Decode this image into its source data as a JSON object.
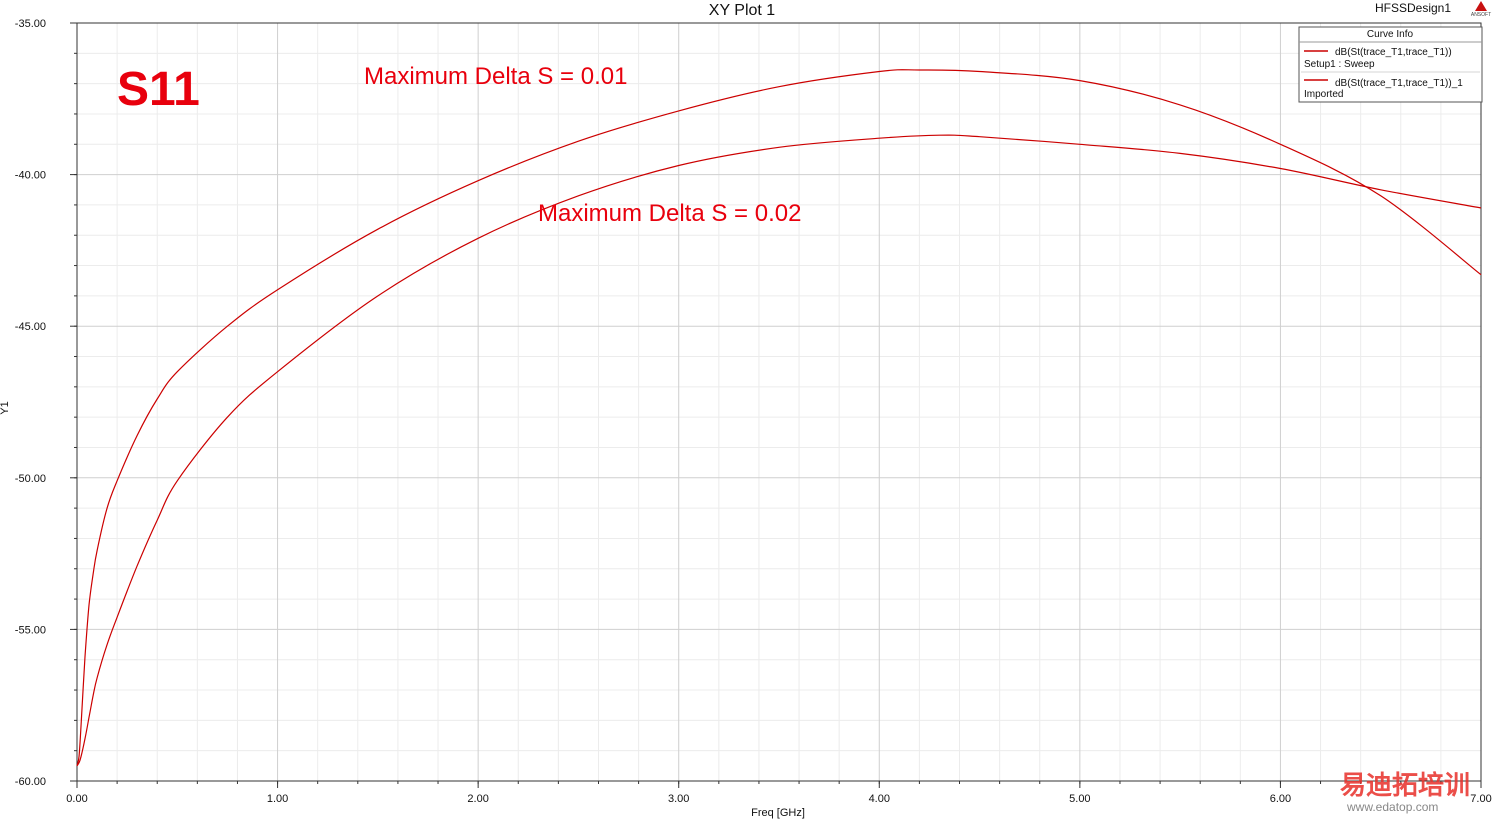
{
  "window": {
    "design_name": "HFSSDesign1",
    "logo_text": "ANSOFT"
  },
  "annotations": {
    "s11": "S11",
    "delta_001": "Maximum Delta S = 0.01",
    "delta_002": "Maximum Delta S = 0.02"
  },
  "watermark": {
    "text": "易迪拓培训",
    "url": "www.edatop.com"
  },
  "chart_data": {
    "type": "line",
    "title": "XY Plot 1",
    "xlabel": "Freq [GHz]",
    "ylabel": "Y1",
    "xlim": [
      0,
      7
    ],
    "ylim": [
      -60,
      -35
    ],
    "x_ticks": [
      "0.00",
      "1.00",
      "2.00",
      "3.00",
      "4.00",
      "5.00",
      "6.00",
      "7.00"
    ],
    "y_ticks": [
      "-35.00",
      "-40.00",
      "-45.00",
      "-50.00",
      "-55.00",
      "-60.00"
    ],
    "grid": true,
    "legend": {
      "title": "Curve Info",
      "position": "top-right",
      "entries": [
        {
          "name": "dB(St(trace_T1,trace_T1))",
          "subtitle": "Setup1 : Sweep",
          "color": "#cc0000"
        },
        {
          "name": "dB(St(trace_T1,trace_T1))_1",
          "subtitle": "Imported",
          "color": "#cc0000"
        }
      ]
    },
    "series": [
      {
        "name": "dB(St(trace_T1,trace_T1))",
        "color": "#cc0000",
        "x": [
          0.0,
          0.01,
          0.02,
          0.04,
          0.06,
          0.08,
          0.1,
          0.15,
          0.2,
          0.3,
          0.4,
          0.5,
          0.75,
          1.0,
          1.5,
          2.0,
          2.5,
          3.0,
          3.5,
          4.0,
          4.2,
          4.5,
          5.0,
          5.5,
          6.0,
          6.5,
          7.0
        ],
        "y": [
          -59.5,
          -59.2,
          -58.2,
          -55.9,
          -54.2,
          -53.2,
          -52.4,
          -51.0,
          -50.1,
          -48.6,
          -47.4,
          -46.5,
          -45.0,
          -43.8,
          -41.8,
          -40.2,
          -38.9,
          -37.9,
          -37.1,
          -36.6,
          -36.55,
          -36.6,
          -36.9,
          -37.7,
          -39.0,
          -40.7,
          -43.3
        ]
      },
      {
        "name": "dB(St(trace_T1,trace_T1))_1",
        "color": "#cc0000",
        "x": [
          0.0,
          0.01,
          0.02,
          0.04,
          0.06,
          0.08,
          0.1,
          0.15,
          0.2,
          0.3,
          0.4,
          0.5,
          0.75,
          1.0,
          1.5,
          2.0,
          2.5,
          3.0,
          3.5,
          4.0,
          4.3,
          4.5,
          5.0,
          5.5,
          6.0,
          6.5,
          7.0
        ],
        "y": [
          -59.5,
          -59.4,
          -59.2,
          -58.6,
          -57.9,
          -57.2,
          -56.6,
          -55.5,
          -54.6,
          -52.9,
          -51.4,
          -50.1,
          -48.0,
          -46.5,
          -44.0,
          -42.1,
          -40.7,
          -39.7,
          -39.1,
          -38.8,
          -38.7,
          -38.75,
          -39.0,
          -39.3,
          -39.8,
          -40.5,
          -41.1
        ]
      }
    ]
  }
}
